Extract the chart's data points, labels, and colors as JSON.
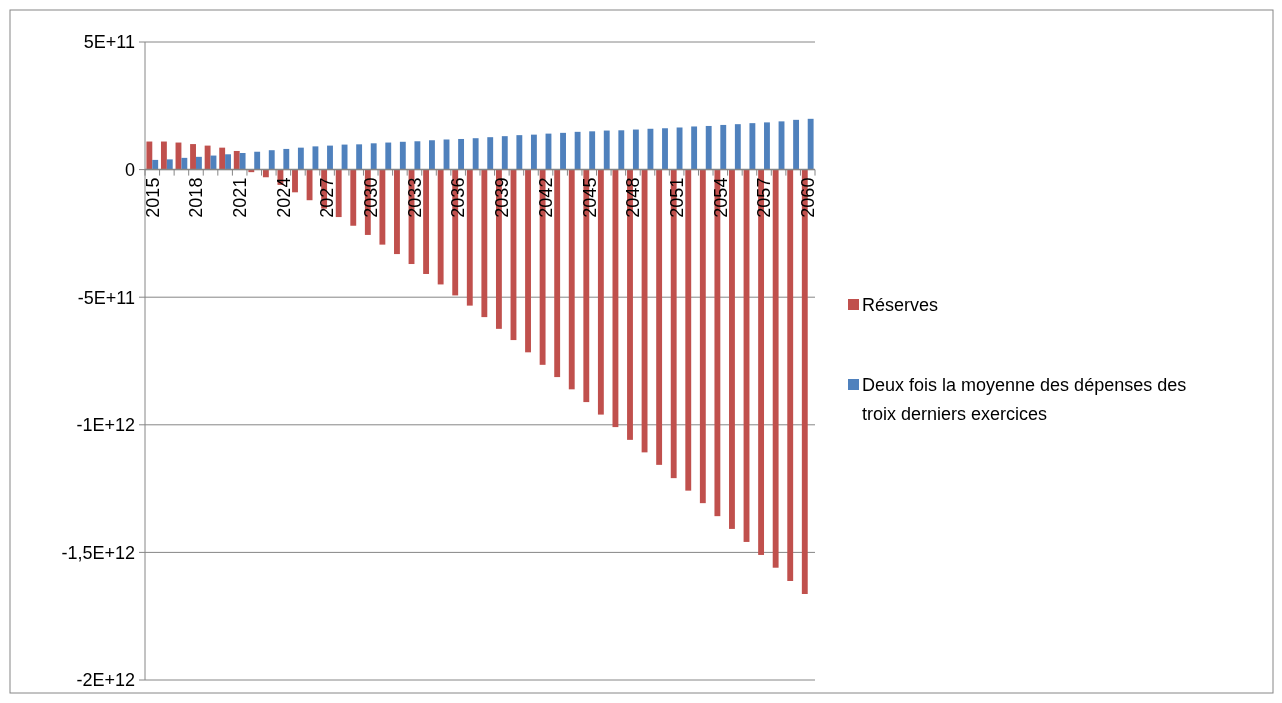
{
  "chart_data": {
    "type": "bar",
    "categories": [
      "2015",
      null,
      null,
      "2018",
      null,
      null,
      "2021",
      null,
      null,
      "2024",
      null,
      null,
      "2027",
      null,
      null,
      "2030",
      null,
      null,
      "2033",
      null,
      null,
      "2036",
      null,
      null,
      "2039",
      null,
      null,
      "2042",
      null,
      null,
      "2045",
      null,
      null,
      "2048",
      null,
      null,
      "2051",
      null,
      null,
      "2054",
      null,
      null,
      "2057",
      null,
      null,
      "2060"
    ],
    "series": [
      {
        "name": "Réserves",
        "color": "#c0504d",
        "values": [
          110000000000.0,
          110000000000.0,
          106000000000.0,
          100000000000.0,
          94000000000.0,
          86000000000.0,
          73000000000.0,
          -10000000000.0,
          -30000000000.0,
          -60000000000.0,
          -89000000000.0,
          -120000000000.0,
          -153000000000.0,
          -186000000000.0,
          -220000000000.0,
          -256000000000.0,
          -294000000000.0,
          -331000000000.0,
          -370000000000.0,
          -409000000000.0,
          -450000000000.0,
          -493000000000.0,
          -533000000000.0,
          -578000000000.0,
          -624000000000.0,
          -668000000000.0,
          -716000000000.0,
          -765000000000.0,
          -813000000000.0,
          -861000000000.0,
          -911000000000.0,
          -960000000000.0,
          -1009000000000.0,
          -1059000000000.0,
          -1108000000000.0,
          -1157000000000.0,
          -1209000000000.0,
          -1258000000000.0,
          -1307000000000.0,
          -1358000000000.0,
          -1408000000000.0,
          -1459000000000.0,
          -1510000000000.0,
          -1560000000000.0,
          -1612000000000.0,
          -1663000000000.0
        ]
      },
      {
        "name": "Deux fois la moyenne des dépenses des troix derniers exercices",
        "color": "#4f81bd",
        "values": [
          38000000000.0,
          40000000000.0,
          46000000000.0,
          50000000000.0,
          55000000000.0,
          60000000000.0,
          65000000000.0,
          70000000000.0,
          76000000000.0,
          81000000000.0,
          86000000000.0,
          91000000000.0,
          94000000000.0,
          98000000000.0,
          99000000000.0,
          103000000000.0,
          106000000000.0,
          109000000000.0,
          111000000000.0,
          115000000000.0,
          118000000000.0,
          120000000000.0,
          123000000000.0,
          127000000000.0,
          131000000000.0,
          135000000000.0,
          137000000000.0,
          141000000000.0,
          144000000000.0,
          148000000000.0,
          150000000000.0,
          153000000000.0,
          154000000000.0,
          157000000000.0,
          160000000000.0,
          162000000000.0,
          165000000000.0,
          169000000000.0,
          171000000000.0,
          175000000000.0,
          178000000000.0,
          182000000000.0,
          185000000000.0,
          189000000000.0,
          195000000000.0,
          199000000000.0
        ]
      }
    ],
    "ylim": [
      -2000000000000.0,
      500000000000.0
    ],
    "yticks": [
      {
        "value": 500000000000.0,
        "label": "5E+11"
      },
      0,
      {
        "value": -500000000000.0,
        "label": "-5E+11"
      },
      {
        "value": -1000000000000.0,
        "label": "-1E+12"
      },
      {
        "value": -1500000000000.0,
        "label": "-1,5E+12"
      },
      {
        "value": -2000000000000.0,
        "label": "-2E+12"
      }
    ],
    "grid": "y",
    "legend": "right"
  }
}
